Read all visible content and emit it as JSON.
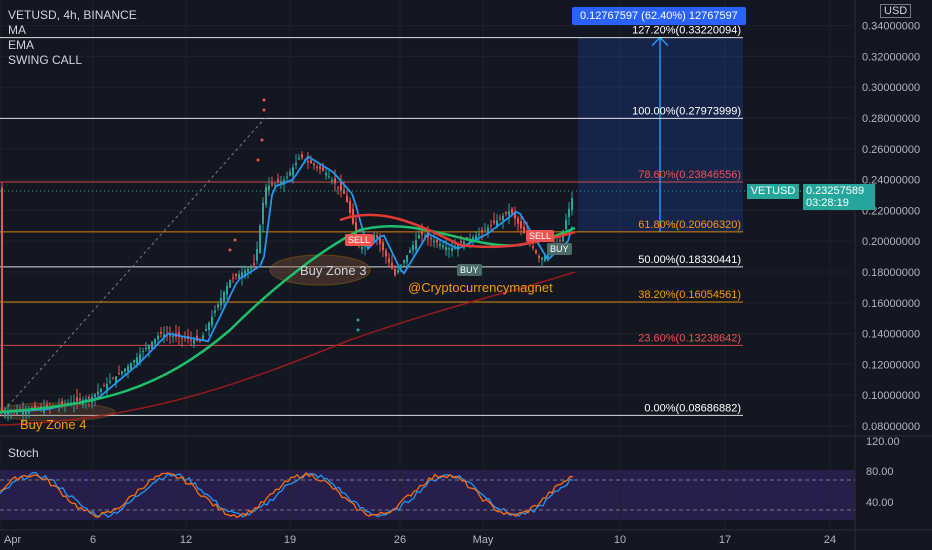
{
  "header": {
    "symbol": "VETUSD, 4h, BINANCE",
    "indicators": [
      "MA",
      "EMA",
      "SWING CALL"
    ]
  },
  "currency_label": "USD",
  "price_axis": {
    "ticks": [
      "0.34000000",
      "0.32000000",
      "0.30000000",
      "0.28000000",
      "0.26000000",
      "0.24000000",
      "0.22000000",
      "0.20000000",
      "0.18000000",
      "0.16000000",
      "0.14000000",
      "0.12000000",
      "0.10000000",
      "0.08000000"
    ],
    "tick_values": [
      0.34,
      0.32,
      0.3,
      0.28,
      0.26,
      0.24,
      0.22,
      0.2,
      0.18,
      0.16,
      0.14,
      0.12,
      0.1,
      0.08
    ]
  },
  "current_price": {
    "symbol": "VETUSD",
    "price": "0.23257589",
    "countdown": "03:28:19",
    "value": 0.23257589
  },
  "measure_tool": {
    "label": "0.12767597 (62.40%) 12767597"
  },
  "fib_levels": [
    {
      "label": "127.20%(0.33220094)",
      "value": 0.33220094,
      "color": "#ffffff"
    },
    {
      "label": "100.00%(0.27973999)",
      "value": 0.27973999,
      "color": "#ffffff"
    },
    {
      "label": "78.60%(0.23846556)",
      "value": 0.23846556,
      "color": "#ef5350"
    },
    {
      "label": "61.80%(0.20606320)",
      "value": 0.2060632,
      "color": "#ff9800"
    },
    {
      "label": "50.00%(0.18330441)",
      "value": 0.18330441,
      "color": "#ffffff"
    },
    {
      "label": "38.20%(0.16054561)",
      "value": 0.16054561,
      "color": "#ff9800"
    },
    {
      "label": "23.60%(0.13238642)",
      "value": 0.13238642,
      "color": "#ef5350"
    },
    {
      "label": "0.00%(0.08686882)",
      "value": 0.08686882,
      "color": "#ffffff"
    }
  ],
  "annotations": {
    "buy_zone_3": "Buy Zone 3",
    "buy_zone_4": "Buy Zone 4",
    "watermark": "@Cryptocurrencymagnet"
  },
  "signals": [
    {
      "text": "SELL",
      "type": "sell"
    },
    {
      "text": "BUY",
      "type": "buy"
    },
    {
      "text": "SELL",
      "type": "sell"
    },
    {
      "text": "BUY",
      "type": "buy"
    }
  ],
  "stoch": {
    "label": "Stoch",
    "ticks": [
      "120.00",
      "80.00",
      "40.00"
    ]
  },
  "time_axis": {
    "labels": [
      "Apr",
      "6",
      "12",
      "19",
      "26",
      "May",
      "10",
      "17",
      "24"
    ]
  },
  "colors": {
    "up": "#26a69a",
    "down": "#ef5350",
    "ma_blue": "#2196f3",
    "ema_green": "#1fbf6a",
    "ma_red": "#e53935",
    "stoch_bg": "#3b2470"
  }
}
